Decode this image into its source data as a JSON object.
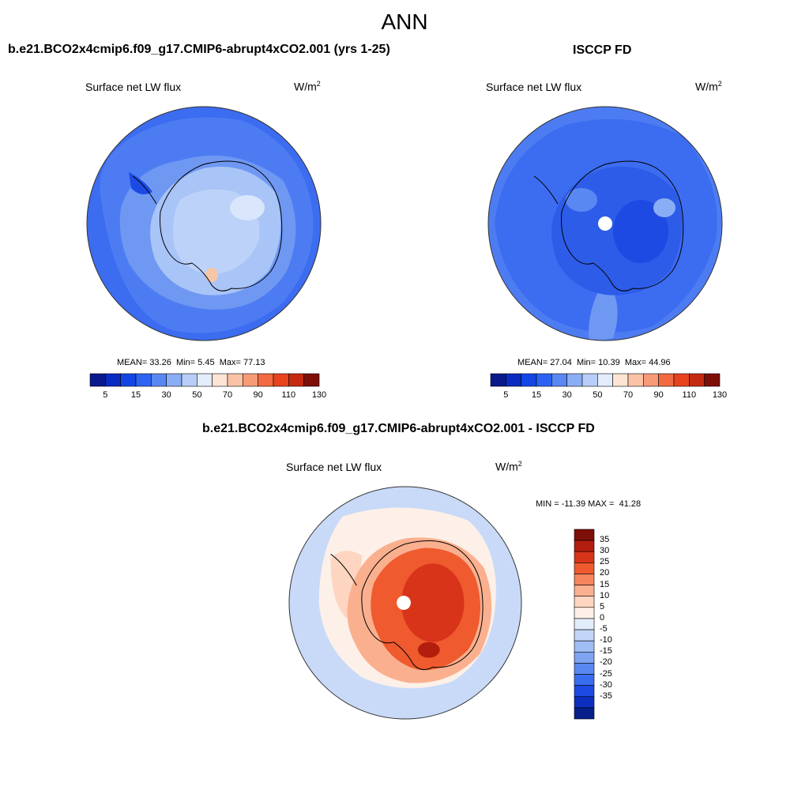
{
  "main_title": "ANN",
  "colors": {
    "cb1": [
      "#0a1a8a",
      "#0b2cc0",
      "#1446e6",
      "#2d63f0",
      "#5a88f2",
      "#8aaef5",
      "#b8cdf8",
      "#e2ecfb",
      "#fde4d4",
      "#fbc2a6",
      "#f79a76",
      "#f26a42",
      "#e8431f",
      "#c42a12",
      "#7e0f08"
    ],
    "cb2": [
      "#7e0f08",
      "#b31d0d",
      "#d8341a",
      "#ef5a2e",
      "#f6845e",
      "#fab08f",
      "#fdd5c0",
      "#fdf0e8",
      "#e2ecfb",
      "#c3d5f8",
      "#a0bdf5",
      "#7ea4f2",
      "#5a88f2",
      "#3a6cf0",
      "#1d4ae2",
      "#0c2fbf",
      "#071f8a"
    ],
    "coast": "#000000"
  },
  "panels": {
    "left": {
      "title": "b.e21.BCO2x4cmip6.f09_g17.CMIP6-abrupt4xCO2.001 (yrs 1-25)",
      "var_label": "Surface net LW flux",
      "units_main": "W/m",
      "units_sup": "2",
      "stats": {
        "mean_label": "MEAN=",
        "mean": "33.26",
        "min_label": "Min=",
        "min": "5.45",
        "max_label": "Max=",
        "max": "77.13"
      }
    },
    "right": {
      "title": "ISCCP FD",
      "var_label": "Surface net LW flux",
      "units_main": "W/m",
      "units_sup": "2",
      "stats": {
        "mean_label": "MEAN=",
        "mean": "27.04",
        "min_label": "Min=",
        "min": "10.39",
        "max_label": "Max=",
        "max": "44.96"
      }
    },
    "diff": {
      "title": "b.e21.BCO2x4cmip6.f09_g17.CMIP6-abrupt4xCO2.001 - ISCCP FD",
      "var_label": "Surface net LW flux",
      "units_main": "W/m",
      "units_sup": "2",
      "stats": {
        "min_label": "MIN =",
        "min": "-11.39",
        "max_label": "MAX =",
        "max": "41.28"
      }
    }
  },
  "colorbar_ticks": [
    "5",
    "15",
    "30",
    "50",
    "70",
    "90",
    "110",
    "130"
  ],
  "diff_colorbar_ticks": [
    "35",
    "30",
    "25",
    "20",
    "15",
    "10",
    "5",
    "0",
    "-5",
    "-10",
    "-15",
    "-20",
    "-25",
    "-30",
    "-35"
  ]
}
